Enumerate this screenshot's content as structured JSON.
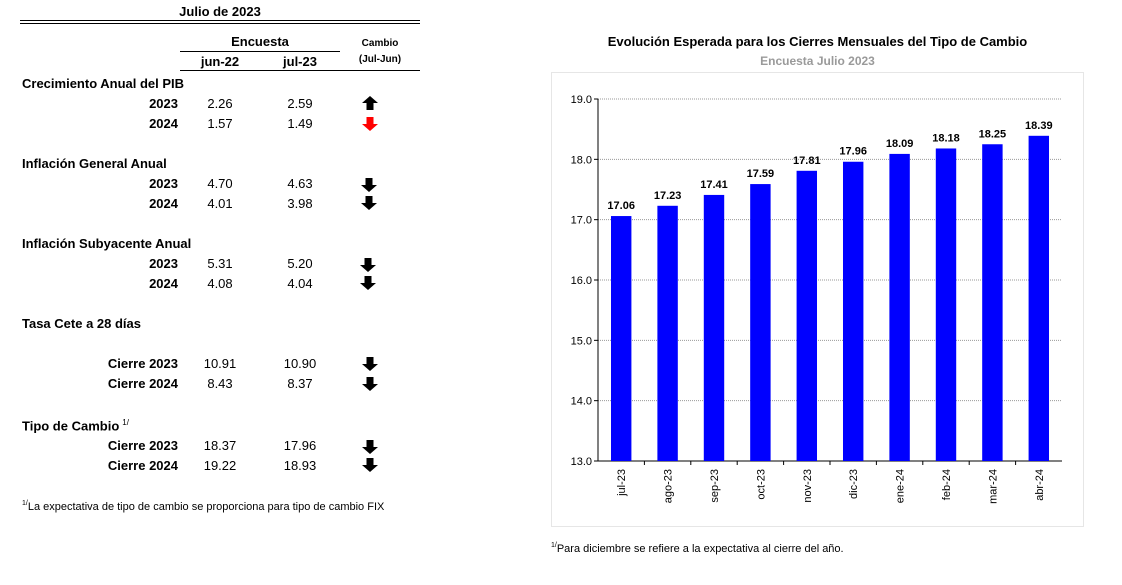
{
  "table": {
    "title": "Julio de 2023",
    "group_header": "Encuesta",
    "col1": "jun-22",
    "col2": "jul-23",
    "change_header": "Cambio",
    "change_sub": "(Jul-Jun)",
    "sections": [
      {
        "label": "Crecimiento Anual del PIB",
        "rows": [
          {
            "year": "2023",
            "v1": "2.26",
            "v2": "2.59",
            "dir": "up"
          },
          {
            "year": "2024",
            "v1": "1.57",
            "v2": "1.49",
            "dir": "down-red"
          }
        ]
      },
      {
        "label": "Inflación General Anual",
        "rows": [
          {
            "year": "2023",
            "v1": "4.70",
            "v2": "4.63",
            "dir": "down"
          },
          {
            "year": "2024",
            "v1": "4.01",
            "v2": "3.98",
            "dir": "down"
          }
        ]
      },
      {
        "label": "Inflación Subyacente Anual",
        "rows": [
          {
            "year": "2023",
            "v1": "5.31",
            "v2": "5.20",
            "dir": "down"
          },
          {
            "year": "2024",
            "v1": "4.08",
            "v2": "4.04",
            "dir": "down"
          }
        ]
      },
      {
        "label": "Tasa Cete a 28 días",
        "rows": [
          {
            "year": "Cierre 2023",
            "v1": "10.91",
            "v2": "10.90",
            "dir": "down"
          },
          {
            "year": "Cierre 2024",
            "v1": "8.43",
            "v2": "8.37",
            "dir": "down"
          }
        ]
      },
      {
        "label": "Tipo de Cambio",
        "label_sup": "1/",
        "rows": [
          {
            "year": "Cierre 2023",
            "v1": "18.37",
            "v2": "17.96",
            "dir": "down"
          },
          {
            "year": "Cierre 2024",
            "v1": "19.22",
            "v2": "18.93",
            "dir": "down"
          }
        ]
      }
    ],
    "footnote_sup": "1/",
    "footnote": "La expectativa de tipo de cambio se proporciona para tipo de cambio FIX"
  },
  "chart_data": {
    "type": "bar",
    "title": "Evolución Esperada para los Cierres Mensuales del Tipo de Cambio",
    "subtitle": "Encuesta Julio 2023",
    "categories": [
      "jul-23",
      "ago-23",
      "sep-23",
      "oct-23",
      "nov-23",
      "dic-23",
      "ene-24",
      "feb-24",
      "mar-24",
      "abr-24"
    ],
    "values": [
      17.06,
      17.23,
      17.41,
      17.59,
      17.81,
      17.96,
      18.09,
      18.18,
      18.25,
      18.39
    ],
    "value_labels": [
      "17.06",
      "17.23",
      "17.41",
      "17.59",
      "17.81",
      "17.96",
      "18.09",
      "18.18",
      "18.25",
      "18.39"
    ],
    "ylim": [
      13.0,
      19.0
    ],
    "yticks": [
      "13.0",
      "14.0",
      "15.0",
      "16.0",
      "17.0",
      "18.0",
      "19.0"
    ],
    "grid": true,
    "bar_color": "#0000ff",
    "footnote_sup": "1/",
    "footnote": "Para diciembre se refiere a la expectativa al cierre del año."
  },
  "colors": {
    "arrow_up": "#000000",
    "arrow_down": "#000000",
    "arrow_down_red": "#ff0000"
  }
}
